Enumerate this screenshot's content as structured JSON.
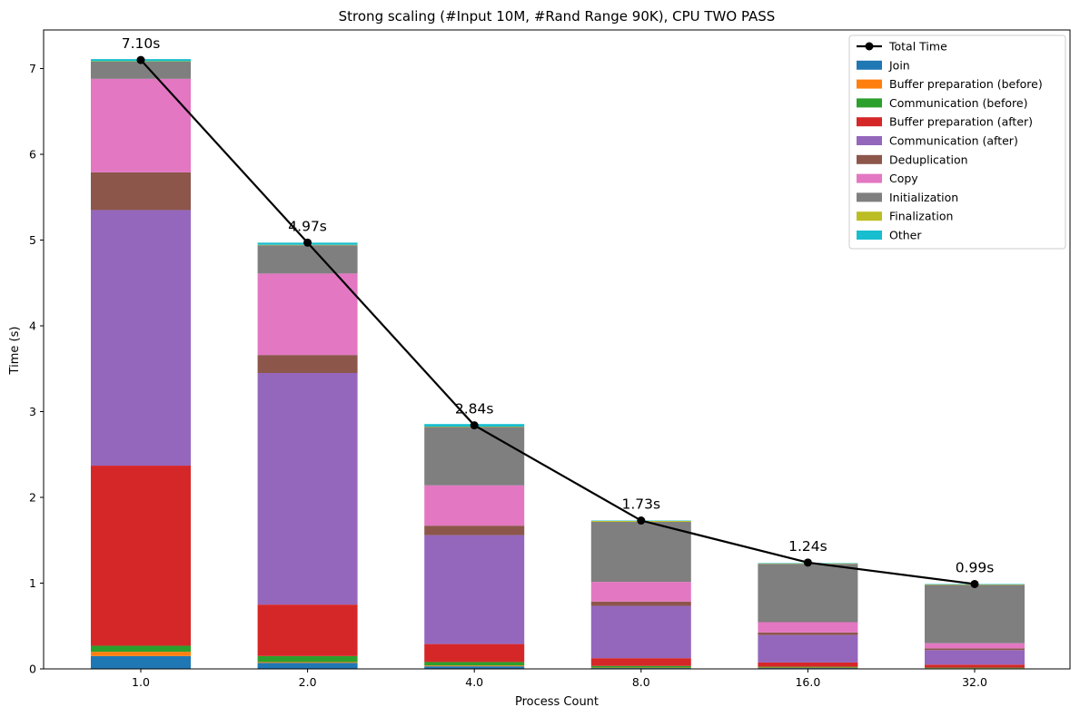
{
  "chart_data": {
    "type": "bar",
    "title": "Strong scaling (#Input 10M, #Rand Range 90K), CPU TWO PASS",
    "xlabel": "Process Count",
    "ylabel": "Time (s)",
    "categories": [
      "1.0",
      "2.0",
      "4.0",
      "8.0",
      "16.0",
      "32.0"
    ],
    "ylim": [
      0,
      7.45
    ],
    "yticks": [
      0,
      1,
      2,
      3,
      4,
      5,
      6,
      7
    ],
    "grid": false,
    "legend_position": "top-right",
    "stacked": true,
    "series": [
      {
        "name": "Join",
        "color": "#1f77b4",
        "values": [
          0.15,
          0.07,
          0.03,
          0.01,
          0.01,
          0.005
        ]
      },
      {
        "name": "Buffer preparation (before)",
        "color": "#ff7f0e",
        "values": [
          0.05,
          0.01,
          0.01,
          0.005,
          0.005,
          0.003
        ]
      },
      {
        "name": "Communication (before)",
        "color": "#2ca02c",
        "values": [
          0.07,
          0.07,
          0.04,
          0.02,
          0.01,
          0.007
        ]
      },
      {
        "name": "Buffer preparation (after)",
        "color": "#d62728",
        "values": [
          2.1,
          0.6,
          0.21,
          0.09,
          0.05,
          0.035
        ]
      },
      {
        "name": "Communication (after)",
        "color": "#9467bd",
        "values": [
          2.98,
          2.7,
          1.27,
          0.61,
          0.32,
          0.17
        ]
      },
      {
        "name": "Deduplication",
        "color": "#8c564b",
        "values": [
          0.44,
          0.21,
          0.11,
          0.05,
          0.03,
          0.02
        ]
      },
      {
        "name": "Copy",
        "color": "#e377c2",
        "values": [
          1.09,
          0.95,
          0.47,
          0.23,
          0.12,
          0.06
        ]
      },
      {
        "name": "Initialization",
        "color": "#7f7f7f",
        "values": [
          0.2,
          0.33,
          0.68,
          0.7,
          0.68,
          0.68
        ]
      },
      {
        "name": "Finalization",
        "color": "#bcbd22",
        "values": [
          0.005,
          0.005,
          0.005,
          0.01,
          0.005,
          0.005
        ]
      },
      {
        "name": "Other",
        "color": "#17becf",
        "values": [
          0.025,
          0.025,
          0.03,
          0.005,
          0.005,
          0.005
        ]
      }
    ],
    "line": {
      "name": "Total Time",
      "color": "#000000",
      "values": [
        7.1,
        4.97,
        2.84,
        1.73,
        1.24,
        0.99
      ],
      "labels": [
        "7.10s",
        "4.97s",
        "2.84s",
        "1.73s",
        "1.24s",
        "0.99s"
      ]
    }
  }
}
